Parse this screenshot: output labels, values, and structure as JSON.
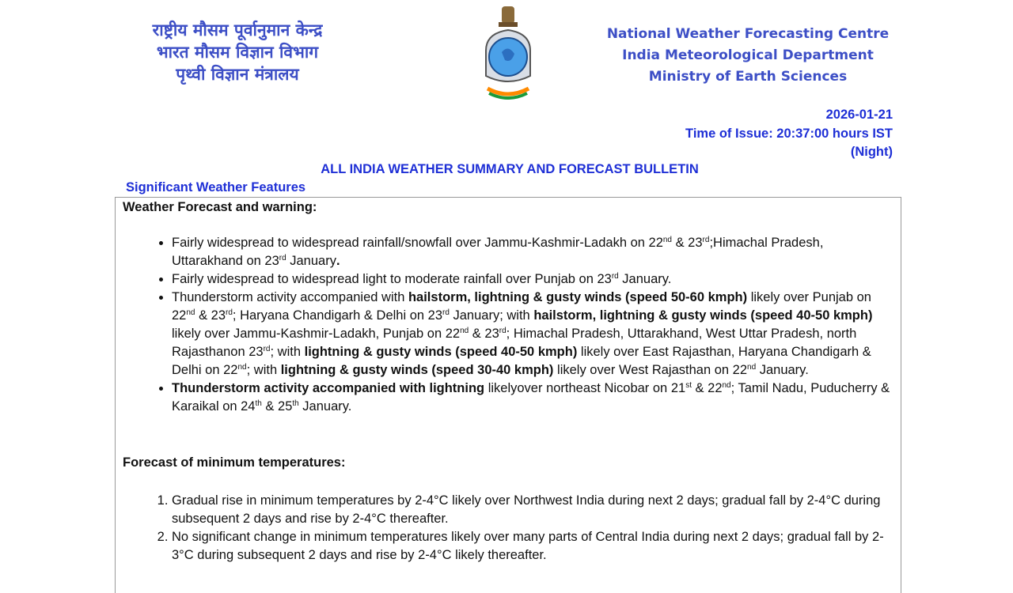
{
  "header": {
    "hindi_lines": [
      "राष्ट्रीय मौसम पूर्वानुमान केन्द्र",
      "भारत मौसम विज्ञान विभाग",
      "पृथ्वी विज्ञान मंत्रालय"
    ],
    "english_lines": [
      "National Weather Forecasting Centre",
      "India Meteorological Department",
      "Ministry of Earth Sciences"
    ],
    "logo": "imd-emblem-logo",
    "date": "2026-01-21",
    "time_of_issue": "Time of Issue: 20:37:00 hours IST",
    "period": "(Night)"
  },
  "colors": {
    "header_blue": "#3d4fc6",
    "title_blue": "#1e2fd6"
  },
  "title": "ALL INDIA WEATHER SUMMARY AND FORECAST BULLETIN",
  "section_title": "Significant Weather Features",
  "warning_heading": "Weather Forecast and warning:",
  "warning_bullets": [
    [
      [
        "Fairly widespread to widespread rainfall/snowfall over Jammu-Kashmir-Ladakh on 22",
        ""
      ],
      [
        "nd",
        "s"
      ],
      [
        " & 23",
        ""
      ],
      [
        "rd",
        "s"
      ],
      [
        ";Himachal Pradesh, Uttarakhand on 23",
        ""
      ],
      [
        "rd",
        "s"
      ],
      [
        " January",
        ""
      ],
      [
        ".",
        "b"
      ]
    ],
    [
      [
        "Fairly widespread to widespread light to moderate rainfall over Punjab on 23",
        ""
      ],
      [
        "rd",
        "s"
      ],
      [
        " January.",
        ""
      ]
    ],
    [
      [
        "Thunderstorm activity accompanied with ",
        ""
      ],
      [
        "hailstorm, lightning & gusty winds (speed 50-60 kmph)",
        "b"
      ],
      [
        " likely over Punjab on 22",
        ""
      ],
      [
        "nd",
        "s"
      ],
      [
        " & 23",
        ""
      ],
      [
        "rd",
        "s"
      ],
      [
        "; Haryana Chandigarh & Delhi on 23",
        ""
      ],
      [
        "rd",
        "s"
      ],
      [
        " January; with ",
        ""
      ],
      [
        "hailstorm, lightning & gusty winds (speed 40-50 kmph)",
        "b"
      ],
      [
        " likely over Jammu-Kashmir-Ladakh, Punjab on 22",
        ""
      ],
      [
        "nd",
        "s"
      ],
      [
        " & 23",
        ""
      ],
      [
        "rd",
        "s"
      ],
      [
        "; Himachal Pradesh, Uttarakhand, West Uttar Pradesh, north Rajasthanon 23",
        ""
      ],
      [
        "rd",
        "s"
      ],
      [
        "; with ",
        ""
      ],
      [
        "lightning & gusty winds (speed 40-50 kmph)",
        "b"
      ],
      [
        " likely over East Rajasthan, Haryana Chandigarh & Delhi on 22",
        ""
      ],
      [
        "nd",
        "s"
      ],
      [
        "; with ",
        ""
      ],
      [
        "lightning & gusty winds (speed 30-40 kmph)",
        "b"
      ],
      [
        " likely over West Rajasthan on 22",
        ""
      ],
      [
        "nd",
        "s"
      ],
      [
        " January.",
        ""
      ]
    ],
    [
      [
        "Thunderstorm activity accompanied with lightning",
        "b"
      ],
      [
        " likelyover northeast Nicobar on 21",
        ""
      ],
      [
        "st",
        "s"
      ],
      [
        " & 22",
        ""
      ],
      [
        "nd",
        "s"
      ],
      [
        "; Tamil Nadu, Puducherry & Karaikal on 24",
        ""
      ],
      [
        "th",
        "s"
      ],
      [
        " & 25",
        ""
      ],
      [
        "th",
        "s"
      ],
      [
        " January.",
        ""
      ]
    ]
  ],
  "min_temp_heading": "Forecast of minimum temperatures:",
  "min_temp_items": [
    "Gradual rise in minimum temperatures by 2-4°C likely over Northwest India during next 2 days; gradual fall by 2-4°C during subsequent 2 days and rise by 2-4°C thereafter.",
    "No significant change in minimum temperatures likely over many parts of Central India during next 2 days; gradual fall by 2-3°C during subsequent 2 days and rise by 2-4°C likely thereafter."
  ]
}
